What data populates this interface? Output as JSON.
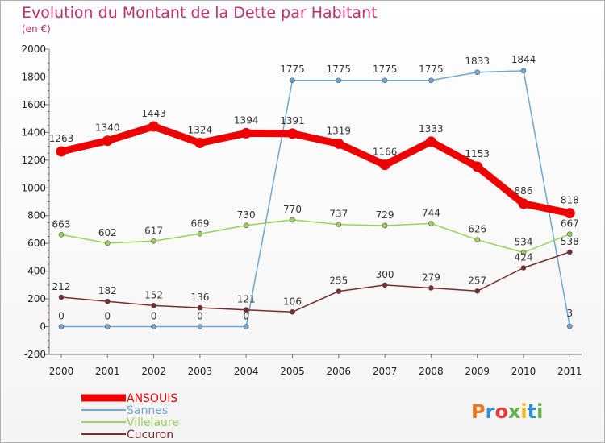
{
  "title": "Evolution du Montant de la Dette par Habitant",
  "subtitle": "(en €)",
  "brand": {
    "letters": [
      "P",
      "r",
      "o",
      "x",
      "i",
      "t",
      "i"
    ],
    "colors": [
      "#e87722",
      "#2f8fd0",
      "#e83a3a",
      "#6ab04c",
      "#f3b51a",
      "#2f8fd0",
      "#6ab04c"
    ]
  },
  "chart_data": {
    "type": "line",
    "categories": [
      "2000",
      "2001",
      "2002",
      "2003",
      "2004",
      "2005",
      "2006",
      "2007",
      "2008",
      "2009",
      "2010",
      "2011"
    ],
    "ylim": [
      -200,
      2000
    ],
    "yticks": [
      -200,
      0,
      200,
      400,
      600,
      800,
      1000,
      1200,
      1400,
      1600,
      1800,
      2000
    ],
    "grid": false,
    "legend_position": "bottom-left",
    "series": [
      {
        "name": "ANSOUIS",
        "color": "#ee0000",
        "values": [
          1263,
          1340,
          1443,
          1324,
          1394,
          1391,
          1319,
          1166,
          1333,
          1153,
          886,
          818
        ]
      },
      {
        "name": "Sannes",
        "color": "#6ea6d4",
        "values": [
          0,
          0,
          0,
          0,
          0,
          1775,
          1775,
          1775,
          1775,
          1833,
          1844,
          3
        ]
      },
      {
        "name": "Villelaure",
        "color": "#99d35a",
        "values": [
          663,
          602,
          617,
          669,
          730,
          770,
          737,
          729,
          744,
          626,
          534,
          667
        ]
      },
      {
        "name": "Cucuron",
        "color": "#7a2c2c",
        "values": [
          212,
          182,
          152,
          136,
          121,
          106,
          255,
          300,
          279,
          257,
          424,
          538
        ]
      }
    ]
  }
}
